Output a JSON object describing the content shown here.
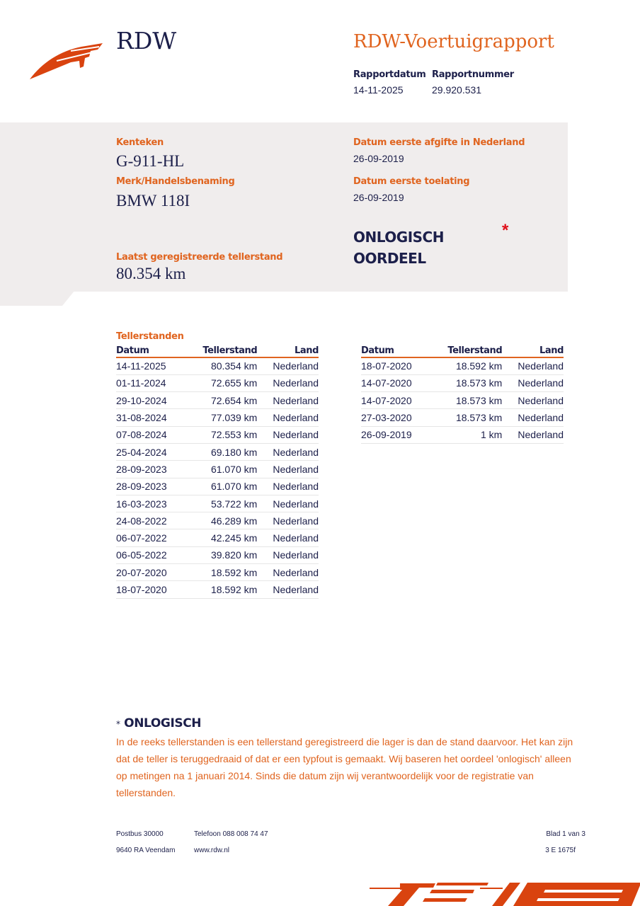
{
  "header": {
    "logo_text": "RDW",
    "title": "RDW-Voertuigrapport",
    "rapportdatum_label": "Rapportdatum",
    "rapportdatum": "14-11-2025",
    "rapportnummer_label": "Rapportnummer",
    "rapportnummer": "29.920.531"
  },
  "vehicle": {
    "kenteken_label": "Kenteken",
    "kenteken": "G-911-HL",
    "merk_label": "Merk/Handelsbenaming",
    "merk": "BMW 118I",
    "teller_label": "Laatst geregistreerde tellerstand",
    "teller": "80.354 km",
    "afgifte_label": "Datum eerste afgifte in Nederland",
    "afgifte": "26-09-2019",
    "toelating_label": "Datum eerste toelating",
    "toelating": "26-09-2019",
    "oordeel_line1": "ONLOGISCH",
    "oordeel_line2": "OORDEEL",
    "asterisk": "*"
  },
  "tellerstanden": {
    "title": "Tellerstanden",
    "columns": [
      "Datum",
      "Tellerstand",
      "Land"
    ],
    "left": [
      [
        "14-11-2025",
        "80.354 km",
        "Nederland"
      ],
      [
        "01-11-2024",
        "72.655 km",
        "Nederland"
      ],
      [
        "29-10-2024",
        "72.654 km",
        "Nederland"
      ],
      [
        "31-08-2024",
        "77.039 km",
        "Nederland"
      ],
      [
        "07-08-2024",
        "72.553 km",
        "Nederland"
      ],
      [
        "25-04-2024",
        "69.180 km",
        "Nederland"
      ],
      [
        "28-09-2023",
        "61.070 km",
        "Nederland"
      ],
      [
        "28-09-2023",
        "61.070 km",
        "Nederland"
      ],
      [
        "16-03-2023",
        "53.722 km",
        "Nederland"
      ],
      [
        "24-08-2022",
        "46.289 km",
        "Nederland"
      ],
      [
        "06-07-2022",
        "42.245 km",
        "Nederland"
      ],
      [
        "06-05-2022",
        "39.820 km",
        "Nederland"
      ],
      [
        "20-07-2020",
        "18.592 km",
        "Nederland"
      ],
      [
        "18-07-2020",
        "18.592 km",
        "Nederland"
      ]
    ],
    "right": [
      [
        "18-07-2020",
        "18.592 km",
        "Nederland"
      ],
      [
        "14-07-2020",
        "18.573 km",
        "Nederland"
      ],
      [
        "14-07-2020",
        "18.573 km",
        "Nederland"
      ],
      [
        "27-03-2020",
        "18.573 km",
        "Nederland"
      ],
      [
        "26-09-2019",
        "1 km",
        "Nederland"
      ]
    ]
  },
  "note": {
    "asterisk": "*",
    "title": "ONLOGISCH",
    "text": "In de reeks tellerstanden is een tellerstand geregistreerd die lager is dan de stand daarvoor. Het kan zijn dat de teller is teruggedraaid of dat er een typfout is gemaakt. Wij baseren het oordeel 'onlogisch' alleen op metingen na 1 januari 2014. Sinds die datum zijn wij verantwoordelijk voor de registratie van tellerstanden."
  },
  "footer": {
    "postbus": "Postbus 30000",
    "adres": "9640 RA Veendam",
    "telefoon": "Telefoon 088 008 74 47",
    "web": "www.rdw.nl",
    "blad": "Blad 1 van 3",
    "code": "3 E 1675f"
  },
  "colors": {
    "accent": "#e0641f",
    "navy": "#1c1f4a",
    "panel": "#f0eded",
    "logo": "#d9430f"
  }
}
